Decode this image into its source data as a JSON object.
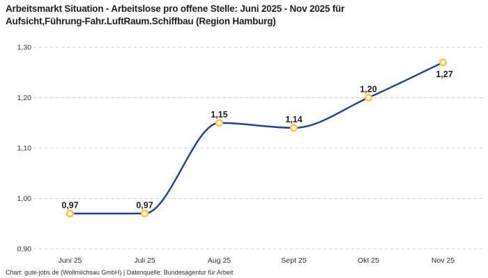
{
  "header": {
    "title_lines": [
      "Arbeitsmarkt Situation - Arbeitslose pro offene Stelle: Juni 2025 - Nov 2025 für",
      "Aufsicht,Führung-Fahr.LuftRaum.Schiffbau (Region Hamburg)"
    ]
  },
  "chart_data": {
    "type": "line",
    "title": "Arbeitsmarkt Situation - Arbeitslose pro offene Stelle: Juni 2025 - Nov 2025 für Aufsicht,Führung-Fahr.LuftRaum.Schiffbau (Region Hamburg)",
    "categories": [
      "Juni 25",
      "Juli 25",
      "Aug 25",
      "Sept 25",
      "Okt 25",
      "Nov 25"
    ],
    "values": [
      0.97,
      0.97,
      1.15,
      1.14,
      1.2,
      1.27
    ],
    "point_labels": [
      "0,97",
      "0,97",
      "1,15",
      "1,14",
      "1,20",
      "1,27"
    ],
    "label_placement": [
      "above",
      "above",
      "above",
      "above",
      "above",
      "below"
    ],
    "y_tick_values": [
      0.9,
      1.0,
      1.1,
      1.2,
      1.3
    ],
    "y_tick_labels": [
      "0,90",
      "1,00",
      "1,10",
      "1,20",
      "1,30"
    ],
    "ylim": [
      0.9,
      1.3
    ],
    "xlabel": "",
    "ylabel": "",
    "grid": "horizontal-dashed",
    "legend": "none",
    "colors": {
      "line": "#1f3d99",
      "marker_ring": "#fbc42d",
      "marker_fill": "#ffffff",
      "gridline": "#cdcdcd",
      "text": "#1d1d1d"
    }
  },
  "footer": {
    "attribution": "Chart: gute-jobs.de (Wollmilchsau GmbH) | Datenquelle: Bundesagentur für Arbeit"
  }
}
